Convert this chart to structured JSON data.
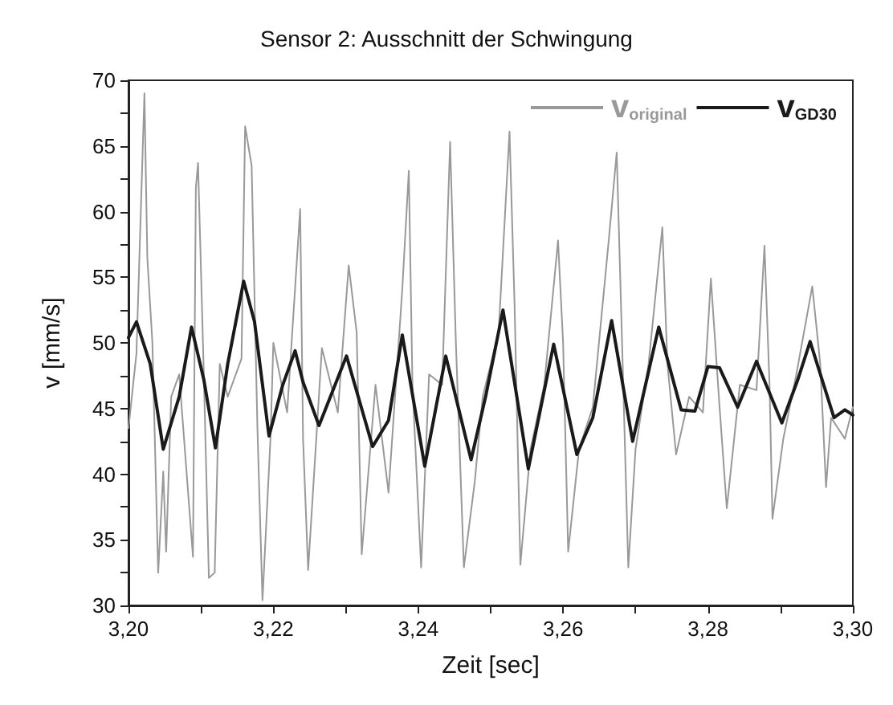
{
  "chart_data": {
    "type": "line",
    "title": "Sensor 2: Ausschnitt der Schwingung",
    "xlabel": "Zeit [sec]",
    "ylabel": "v [mm/s]",
    "xlim": [
      3.2,
      3.3
    ],
    "ylim": [
      30,
      70
    ],
    "xticks": [
      {
        "value": 3.2,
        "label": "3,20"
      },
      {
        "value": 3.21,
        "label": null
      },
      {
        "value": 3.22,
        "label": "3,22"
      },
      {
        "value": 3.23,
        "label": null
      },
      {
        "value": 3.24,
        "label": "3,24"
      },
      {
        "value": 3.25,
        "label": null
      },
      {
        "value": 3.26,
        "label": "3,26"
      },
      {
        "value": 3.27,
        "label": null
      },
      {
        "value": 3.28,
        "label": "3,28"
      },
      {
        "value": 3.29,
        "label": null
      },
      {
        "value": 3.3,
        "label": "3,30"
      }
    ],
    "yticks": [
      30,
      {
        "value": 32.5,
        "label": null
      },
      35,
      {
        "value": 37.5,
        "label": null
      },
      40,
      {
        "value": 42.5,
        "label": null
      },
      45,
      {
        "value": 47.5,
        "label": null
      },
      50,
      {
        "value": 52.5,
        "label": null
      },
      55,
      {
        "value": 57.5,
        "label": null
      },
      60,
      {
        "value": 62.5,
        "label": null
      },
      65,
      {
        "value": 67.5,
        "label": null
      },
      70
    ],
    "grid": false,
    "legend": "top right",
    "marker": "none",
    "line_style": "solid",
    "series": [
      {
        "name": "v$_{original}$",
        "color": "#999999",
        "x": [
          3.2,
          3.2011,
          3.2022,
          3.2026,
          3.2033,
          3.2041,
          3.2048,
          3.2052,
          3.2059,
          3.207,
          3.2089,
          3.2093,
          3.2096,
          3.2104,
          3.2111,
          3.2119,
          3.2126,
          3.2137,
          3.2156,
          3.2161,
          3.217,
          3.2178,
          3.2185,
          3.2196,
          3.22,
          3.2219,
          3.2237,
          3.2241,
          3.2248,
          3.2267,
          3.2289,
          3.2304,
          3.2315,
          3.2322,
          3.2341,
          3.2359,
          3.2378,
          3.2387,
          3.2392,
          3.2404,
          3.2415,
          3.2433,
          3.2444,
          3.2452,
          3.2463,
          3.2478,
          3.2489,
          3.2511,
          3.2526,
          3.2533,
          3.2541,
          3.2555,
          3.2574,
          3.2593,
          3.26,
          3.2607,
          3.2622,
          3.2641,
          3.2663,
          3.2674,
          3.2681,
          3.269,
          3.27,
          3.2718,
          3.2737,
          3.2744,
          3.2756,
          3.2774,
          3.2793,
          3.2804,
          3.2815,
          3.2826,
          3.2844,
          3.2867,
          3.2878,
          3.2885,
          3.2889,
          3.2904,
          3.2922,
          3.2944,
          3.2955,
          3.2963,
          3.297,
          3.2989,
          3.3
        ],
        "values": [
          43.5,
          49.2,
          69.0,
          56.5,
          50.0,
          32.5,
          40.2,
          34.1,
          45.9,
          47.6,
          33.7,
          61.8,
          63.7,
          47.6,
          32.1,
          32.5,
          48.4,
          45.9,
          48.8,
          66.5,
          63.5,
          43.5,
          30.4,
          42.7,
          50.0,
          44.7,
          60.2,
          42.7,
          32.7,
          49.6,
          44.7,
          55.9,
          50.8,
          33.9,
          46.8,
          38.6,
          54.1,
          63.1,
          46.8,
          32.9,
          47.6,
          46.8,
          65.3,
          50.0,
          32.9,
          39.4,
          45.9,
          50.8,
          66.1,
          52.9,
          33.1,
          41.9,
          46.8,
          57.8,
          50.0,
          34.1,
          41.9,
          45.1,
          57.8,
          64.5,
          50.8,
          32.9,
          41.9,
          48.4,
          58.8,
          48.4,
          41.5,
          45.9,
          44.7,
          54.9,
          45.9,
          37.4,
          46.8,
          46.4,
          57.4,
          46.8,
          36.6,
          42.7,
          47.6,
          54.3,
          48.4,
          39.0,
          44.3,
          42.7,
          45.1
        ]
      },
      {
        "name": "v$_{GD30}$",
        "color": "#1a1a1a",
        "x": [
          3.2,
          3.2011,
          3.203,
          3.2048,
          3.207,
          3.2087,
          3.2104,
          3.212,
          3.2137,
          3.2159,
          3.2174,
          3.2194,
          3.2213,
          3.223,
          3.2241,
          3.2263,
          3.2301,
          3.2337,
          3.2359,
          3.2378,
          3.2409,
          3.2438,
          3.2473,
          3.2493,
          3.2517,
          3.2552,
          3.2587,
          3.2619,
          3.2641,
          3.2667,
          3.2696,
          3.2732,
          3.2763,
          3.2782,
          3.28,
          3.2816,
          3.2841,
          3.2867,
          3.2902,
          3.2924,
          3.2941,
          3.2974,
          3.2989,
          3.3
        ],
        "values": [
          50.4,
          51.6,
          48.4,
          41.9,
          45.9,
          51.2,
          47.2,
          42.0,
          48.4,
          54.7,
          51.6,
          42.9,
          46.8,
          49.4,
          47.0,
          43.7,
          49.0,
          42.1,
          44.1,
          50.6,
          40.6,
          49.0,
          41.1,
          45.9,
          52.5,
          40.4,
          49.9,
          41.5,
          44.3,
          51.7,
          42.5,
          51.2,
          44.9,
          44.8,
          48.2,
          48.1,
          45.1,
          48.6,
          43.9,
          47.2,
          50.1,
          44.3,
          44.9,
          44.5
        ]
      }
    ]
  }
}
